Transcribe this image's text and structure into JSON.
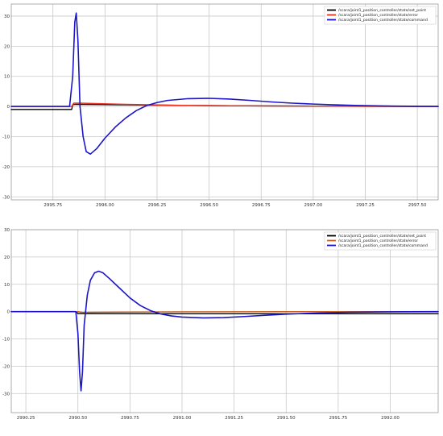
{
  "chart_data": [
    {
      "type": "line",
      "xlim": [
        2995.55,
        2997.6
      ],
      "ylim": [
        -31,
        34
      ],
      "xticks": [
        2995.75,
        2996.0,
        2996.25,
        2996.5,
        2996.75,
        2997.0,
        2997.25,
        2997.5
      ],
      "xtick_labels": [
        "2995.75",
        "2996.00",
        "2996.25",
        "2996.50",
        "2996.75",
        "2997.00",
        "2997.25",
        "2997.50"
      ],
      "yticks": [
        -30,
        -20,
        -10,
        0,
        10,
        20,
        30
      ],
      "ytick_labels": [
        "-30",
        "-20",
        "-10",
        "0",
        "10",
        "20",
        "30"
      ],
      "grid": true,
      "legend_position": "top-right",
      "series": [
        {
          "name": "/scara/joint1_position_controller/state/set_point",
          "color": "#000000",
          "x": [
            2995.55,
            2995.84,
            2995.845,
            2995.86,
            2996.2,
            2996.6,
            2997.0,
            2997.6
          ],
          "y": [
            -1.0,
            -1.0,
            0.6,
            0.7,
            0.45,
            0.25,
            0.12,
            0.0
          ]
        },
        {
          "name": "/scara/joint1_position_controller/state/error",
          "color": "#e8321f",
          "x": [
            2995.55,
            2995.84,
            2995.85,
            2995.88,
            2996.1,
            2996.4,
            2996.8,
            2997.2,
            2997.6
          ],
          "y": [
            0.0,
            0.0,
            1.1,
            1.1,
            0.7,
            0.35,
            0.15,
            0.05,
            0.0
          ]
        },
        {
          "name": "/scara/joint1_position_controller/state/command",
          "color": "#1c16c8",
          "x": [
            2995.55,
            2995.83,
            2995.845,
            2995.855,
            2995.862,
            2995.87,
            2995.88,
            2995.895,
            2995.91,
            2995.93,
            2995.96,
            2996.0,
            2996.05,
            2996.1,
            2996.15,
            2996.2,
            2996.25,
            2996.3,
            2996.4,
            2996.5,
            2996.6,
            2996.7,
            2996.8,
            2996.9,
            2997.0,
            2997.1,
            2997.2,
            2997.3,
            2997.4,
            2997.5,
            2997.6
          ],
          "y": [
            0.0,
            0.0,
            10.0,
            28.0,
            31.0,
            22.0,
            0.0,
            -10.0,
            -15.0,
            -15.8,
            -14.0,
            -10.5,
            -6.8,
            -3.8,
            -1.4,
            0.3,
            1.3,
            2.0,
            2.6,
            2.7,
            2.45,
            2.0,
            1.5,
            1.1,
            0.8,
            0.55,
            0.35,
            0.2,
            0.1,
            0.05,
            0.0
          ]
        }
      ]
    },
    {
      "type": "line",
      "xlim": [
        2990.18,
        2992.23
      ],
      "ylim": [
        -37,
        30
      ],
      "xticks": [
        2990.25,
        2990.5,
        2990.75,
        2991.0,
        2991.25,
        2991.5,
        2991.75,
        2992.0
      ],
      "xtick_labels": [
        "2990.25",
        "2990.50",
        "2990.75",
        "2991.00",
        "2991.25",
        "2991.50",
        "2991.75",
        "2992.00"
      ],
      "yticks": [
        -30,
        -20,
        -10,
        0,
        10,
        20,
        30
      ],
      "ytick_labels": [
        "-30",
        "-20",
        "-10",
        "0",
        "10",
        "20",
        "30"
      ],
      "grid": true,
      "legend_position": "top-right",
      "series": [
        {
          "name": "/scara/joint1_position_controller/state/set_point",
          "color": "#000000",
          "x": [
            2990.18,
            2990.49,
            2990.5,
            2990.6,
            2991.0,
            2991.5,
            2992.23
          ],
          "y": [
            0.0,
            0.0,
            -0.7,
            -0.75,
            -0.8,
            -0.8,
            -0.8
          ]
        },
        {
          "name": "/scara/joint1_position_controller/state/error",
          "color": "#c86020",
          "x": [
            2990.18,
            2990.5,
            2990.52,
            2990.7,
            2991.0,
            2991.5,
            2992.23
          ],
          "y": [
            0.0,
            0.0,
            -0.3,
            -0.2,
            -0.1,
            0.0,
            0.0
          ]
        },
        {
          "name": "/scara/joint1_position_controller/state/command",
          "color": "#1c16c8",
          "x": [
            2990.18,
            2990.49,
            2990.5,
            2990.508,
            2990.515,
            2990.522,
            2990.53,
            2990.545,
            2990.56,
            2990.58,
            2990.6,
            2990.62,
            2990.65,
            2990.7,
            2990.75,
            2990.8,
            2990.85,
            2990.9,
            2990.95,
            2991.0,
            2991.1,
            2991.2,
            2991.3,
            2991.4,
            2991.5,
            2991.6,
            2991.7,
            2991.8,
            2992.0,
            2992.23
          ],
          "y": [
            0.0,
            0.0,
            -8.0,
            -22.0,
            -29.0,
            -22.0,
            -5.0,
            6.0,
            11.5,
            14.2,
            14.8,
            14.2,
            12.2,
            8.6,
            5.0,
            2.2,
            0.3,
            -0.9,
            -1.6,
            -2.0,
            -2.3,
            -2.2,
            -1.8,
            -1.35,
            -0.95,
            -0.65,
            -0.4,
            -0.25,
            -0.1,
            0.0
          ]
        }
      ]
    }
  ]
}
